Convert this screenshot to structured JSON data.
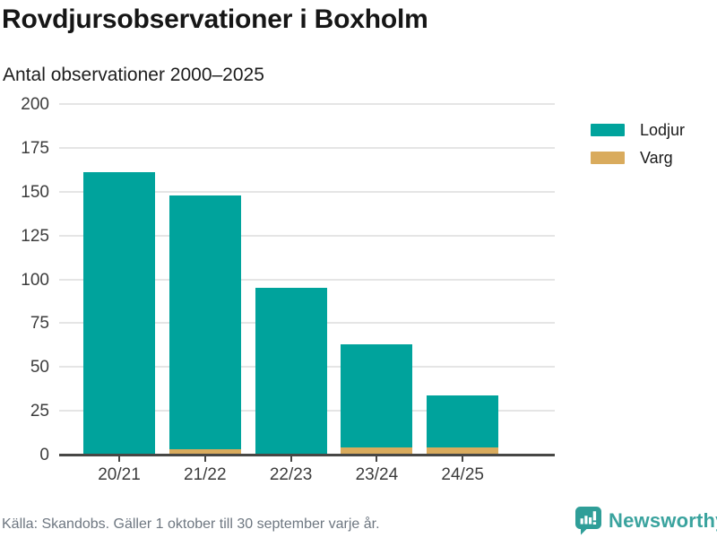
{
  "header": {
    "title": "Rovdjursobservationer i Boxholm",
    "subtitle": "Antal observationer 2000–2025"
  },
  "chart_data": {
    "type": "bar",
    "stacked": true,
    "title": "Rovdjursobservationer i Boxholm",
    "subtitle": "Antal observationer 2000–2025",
    "categories": [
      "20/21",
      "21/22",
      "22/23",
      "23/24",
      "24/25"
    ],
    "series": [
      {
        "name": "Lodjur",
        "color": "#00a39c",
        "values": [
          161,
          145,
          95,
          59,
          30
        ]
      },
      {
        "name": "Varg",
        "color": "#d9ab5d",
        "values": [
          0,
          3,
          0,
          4,
          4
        ]
      }
    ],
    "stacked_totals": [
      161,
      148,
      95,
      63,
      34
    ],
    "xlabel": "",
    "ylabel": "",
    "ylim": [
      0,
      200
    ],
    "yticks": [
      0,
      25,
      50,
      75,
      100,
      125,
      150,
      175,
      200
    ],
    "grid": true,
    "legend_position": "right"
  },
  "legend": {
    "items": [
      {
        "label": "Lodjur",
        "color": "#00a39c"
      },
      {
        "label": "Varg",
        "color": "#d9ab5d"
      }
    ]
  },
  "footer": {
    "source": "Källa: Skandobs. Gäller 1 oktober till 30 september varje år.",
    "brand": "Newsworthy"
  },
  "colors": {
    "lodjur": "#00a39c",
    "varg": "#d9ab5d",
    "axis": "#474745",
    "gridline": "#e5e5e5",
    "brand_teal": "#3aa39e",
    "source_gray": "#6e7781"
  }
}
